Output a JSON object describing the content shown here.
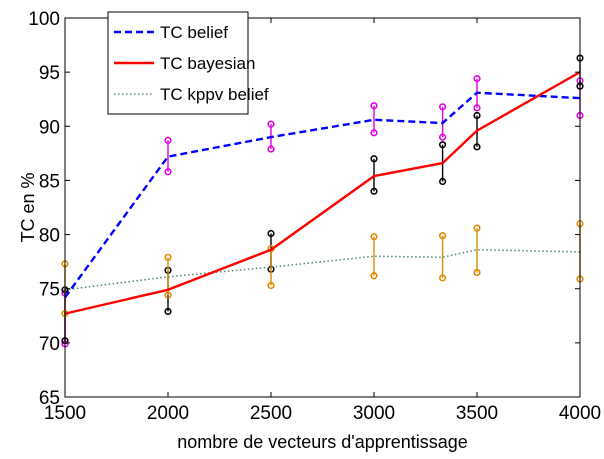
{
  "chart_data": {
    "type": "line",
    "xlabel": "nombre de vecteurs d'apprentissage",
    "ylabel": "TC en %",
    "xlim": [
      1500,
      4000
    ],
    "ylim": [
      65,
      100
    ],
    "xticks": [
      1500,
      2000,
      2500,
      3000,
      3500,
      4000
    ],
    "yticks": [
      65,
      70,
      75,
      80,
      85,
      90,
      95,
      100
    ],
    "xtick_labels": [
      "1500",
      "2000",
      "2500",
      "3000",
      "3500",
      "4000"
    ],
    "ytick_labels": [
      "65",
      "70",
      "75",
      "80",
      "85",
      "90",
      "95",
      "100"
    ],
    "grid": false,
    "legend_position": "top-left",
    "series": [
      {
        "name": "TC belief",
        "color": "#0000ff",
        "style": "dashed",
        "x": [
          1500,
          2000,
          2500,
          3000,
          3333,
          3500,
          4000
        ],
        "y": [
          74.2,
          87.2,
          89.0,
          90.6,
          90.3,
          93.1,
          92.6
        ],
        "err_low": [
          69.9,
          85.8,
          87.9,
          89.4,
          89.0,
          91.7,
          91.0
        ],
        "err_high": [
          74.6,
          88.7,
          90.2,
          91.9,
          91.8,
          94.4,
          94.2
        ],
        "err_color": "#e000e0"
      },
      {
        "name": "TC bayesian",
        "color": "#ff0000",
        "style": "solid",
        "x": [
          1500,
          2000,
          2500,
          3000,
          3333,
          3500,
          4000
        ],
        "y": [
          72.7,
          74.9,
          78.6,
          85.4,
          86.6,
          89.6,
          95.0
        ],
        "err_low": [
          70.2,
          72.9,
          76.8,
          84.0,
          84.9,
          88.1,
          93.7
        ],
        "err_high": [
          74.9,
          76.7,
          80.1,
          87.0,
          88.3,
          91.0,
          96.3
        ],
        "err_color": "#000000"
      },
      {
        "name": "TC kppv belief",
        "color": "#558877",
        "style": "dotted",
        "x": [
          1500,
          2000,
          2500,
          3000,
          3333,
          3500,
          4000
        ],
        "y": [
          74.9,
          76.1,
          77.0,
          78.0,
          77.9,
          78.6,
          78.4
        ],
        "err_low": [
          72.7,
          74.4,
          75.3,
          76.2,
          76.0,
          76.5,
          75.9
        ],
        "err_high": [
          77.3,
          77.9,
          78.7,
          79.8,
          79.9,
          80.6,
          81.0
        ],
        "err_color": "#e08a00"
      }
    ]
  }
}
